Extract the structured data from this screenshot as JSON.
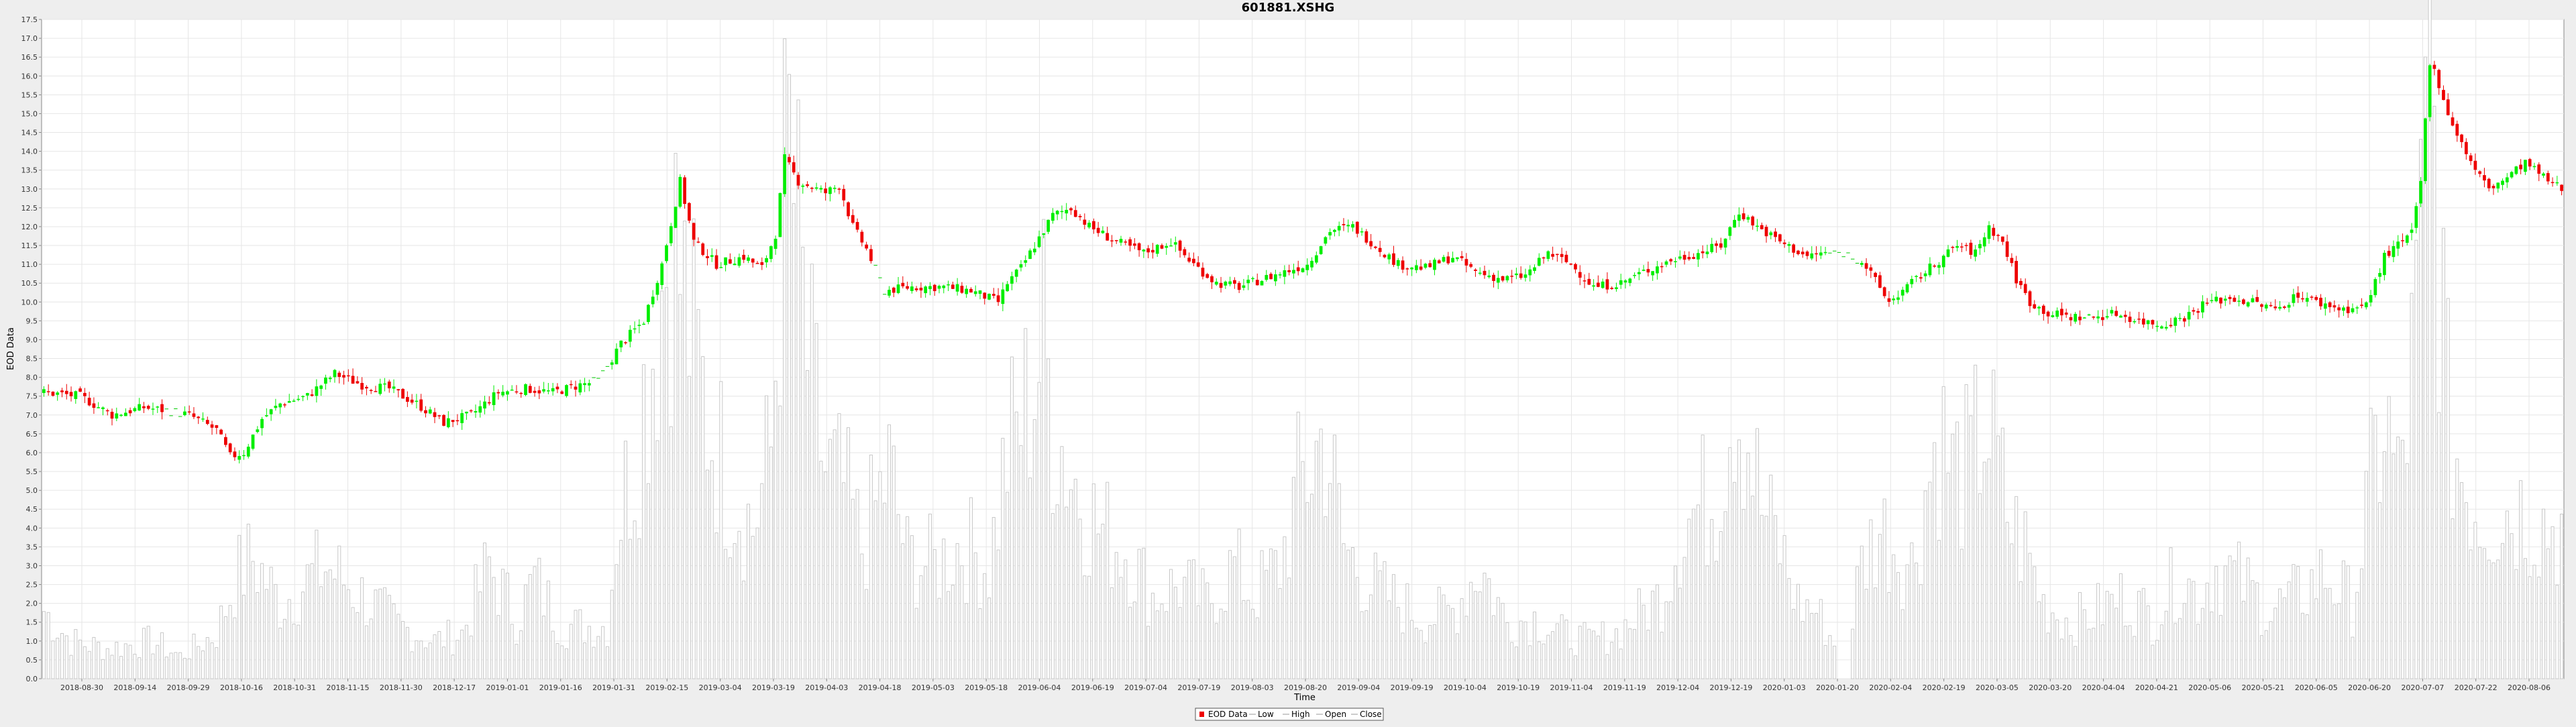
{
  "chart_data": {
    "type": "candlestick",
    "title": "601881.XSHG",
    "xlabel": "Time",
    "ylabel": "EOD Data",
    "ylim": [
      0.0,
      17.5
    ],
    "yticks": [
      0.0,
      0.5,
      1.0,
      1.5,
      2.0,
      2.5,
      3.0,
      3.5,
      4.0,
      4.5,
      5.0,
      5.5,
      6.0,
      6.5,
      7.0,
      7.5,
      8.0,
      8.5,
      9.0,
      9.5,
      10.0,
      10.5,
      11.0,
      11.5,
      12.0,
      12.5,
      13.0,
      13.5,
      14.0,
      14.5,
      15.0,
      15.5,
      16.0,
      16.5,
      17.0,
      17.5
    ],
    "x_tick_labels": [
      "2018-08-30",
      "2018-09-14",
      "2018-09-29",
      "2018-10-16",
      "2018-10-31",
      "2018-11-15",
      "2018-11-30",
      "2018-12-17",
      "2019-01-01",
      "2019-01-16",
      "2019-01-31",
      "2019-02-15",
      "2019-03-04",
      "2019-03-19",
      "2019-04-03",
      "2019-04-18",
      "2019-05-03",
      "2019-05-18",
      "2019-06-04",
      "2019-06-19",
      "2019-07-04",
      "2019-07-19",
      "2019-08-03",
      "2019-08-20",
      "2019-09-04",
      "2019-09-19",
      "2019-10-04",
      "2019-10-19",
      "2019-11-04",
      "2019-11-19",
      "2019-12-04",
      "2019-12-19",
      "2020-01-03",
      "2020-01-20",
      "2020-02-04",
      "2020-02-19",
      "2020-03-05",
      "2020-03-20",
      "2020-04-04",
      "2020-04-21",
      "2020-05-06",
      "2020-05-21",
      "2020-06-05",
      "2020-06-20",
      "2020-07-07",
      "2020-07-22",
      "2020-08-06"
    ],
    "legend": {
      "position": "bottom-center",
      "items": [
        "EOD Data",
        "Low",
        "High",
        "Open",
        "Close"
      ]
    },
    "grid": true,
    "colors": {
      "up": "#00ee00",
      "down": "#ee0000",
      "volume": "#c8c8c8",
      "gap": "#00cc00",
      "grid": "#e6e6e6"
    },
    "close_anchors": [
      [
        0,
        7.6
      ],
      [
        8,
        7.5
      ],
      [
        15,
        7.0
      ],
      [
        22,
        7.2
      ],
      [
        28,
        7.1
      ],
      [
        32,
        7.0
      ],
      [
        38,
        6.6
      ],
      [
        41,
        5.9
      ],
      [
        44,
        6.0
      ],
      [
        48,
        6.9
      ],
      [
        52,
        7.3
      ],
      [
        58,
        7.5
      ],
      [
        64,
        8.1
      ],
      [
        70,
        7.8
      ],
      [
        76,
        7.7
      ],
      [
        82,
        7.3
      ],
      [
        88,
        6.8
      ],
      [
        94,
        7.0
      ],
      [
        100,
        7.6
      ],
      [
        106,
        7.7
      ],
      [
        112,
        7.6
      ],
      [
        118,
        7.8
      ],
      [
        122,
        7.9
      ],
      [
        127,
        8.9
      ],
      [
        132,
        9.5
      ],
      [
        136,
        11.0
      ],
      [
        140,
        13.2
      ],
      [
        143,
        11.6
      ],
      [
        148,
        11.0
      ],
      [
        154,
        11.2
      ],
      [
        158,
        10.9
      ],
      [
        161,
        11.8
      ],
      [
        163,
        13.8
      ],
      [
        166,
        13.2
      ],
      [
        172,
        12.9
      ],
      [
        175,
        13.1
      ],
      [
        178,
        12.0
      ],
      [
        181,
        11.4
      ],
      [
        185,
        10.3
      ],
      [
        191,
        10.4
      ],
      [
        198,
        10.4
      ],
      [
        204,
        10.3
      ],
      [
        210,
        10.0
      ],
      [
        212,
        10.5
      ],
      [
        215,
        10.9
      ],
      [
        218,
        11.5
      ],
      [
        222,
        12.3
      ],
      [
        226,
        12.5
      ],
      [
        230,
        12.0
      ],
      [
        236,
        11.6
      ],
      [
        242,
        11.3
      ],
      [
        248,
        11.6
      ],
      [
        253,
        11.0
      ],
      [
        258,
        10.5
      ],
      [
        263,
        10.4
      ],
      [
        268,
        10.6
      ],
      [
        273,
        10.8
      ],
      [
        278,
        11.0
      ],
      [
        283,
        11.9
      ],
      [
        288,
        12.0
      ],
      [
        293,
        11.5
      ],
      [
        298,
        11.0
      ],
      [
        304,
        10.9
      ],
      [
        310,
        11.2
      ],
      [
        315,
        10.8
      ],
      [
        321,
        10.6
      ],
      [
        326,
        10.7
      ],
      [
        331,
        11.3
      ],
      [
        336,
        11.0
      ],
      [
        341,
        10.4
      ],
      [
        347,
        10.5
      ],
      [
        352,
        10.8
      ],
      [
        358,
        11.1
      ],
      [
        364,
        11.3
      ],
      [
        369,
        11.5
      ],
      [
        373,
        12.4
      ],
      [
        377,
        12.0
      ],
      [
        382,
        11.6
      ],
      [
        388,
        11.2
      ],
      [
        391,
        11.3
      ],
      [
        396,
        11.3
      ],
      [
        400,
        11.1
      ],
      [
        406,
        10.0
      ],
      [
        411,
        10.5
      ],
      [
        416,
        11.0
      ],
      [
        421,
        11.5
      ],
      [
        425,
        11.3
      ],
      [
        428,
        12.0
      ],
      [
        431,
        11.6
      ],
      [
        434,
        10.6
      ],
      [
        437,
        10.0
      ],
      [
        441,
        9.7
      ],
      [
        446,
        9.6
      ],
      [
        451,
        9.6
      ],
      [
        456,
        9.7
      ],
      [
        461,
        9.5
      ],
      [
        466,
        9.4
      ],
      [
        471,
        9.6
      ],
      [
        476,
        10.0
      ],
      [
        481,
        10.1
      ],
      [
        486,
        10.0
      ],
      [
        491,
        9.8
      ],
      [
        496,
        10.2
      ],
      [
        500,
        10.0
      ],
      [
        506,
        9.8
      ],
      [
        511,
        9.9
      ],
      [
        515,
        11.2
      ],
      [
        518,
        11.5
      ],
      [
        521,
        11.8
      ],
      [
        523,
        13.2
      ],
      [
        525,
        16.4
      ],
      [
        527,
        15.8
      ],
      [
        529,
        15.0
      ],
      [
        532,
        14.2
      ],
      [
        535,
        13.5
      ],
      [
        538,
        13.0
      ],
      [
        542,
        13.3
      ],
      [
        546,
        13.7
      ],
      [
        550,
        13.3
      ],
      [
        554,
        13.0
      ]
    ],
    "volume_anchors": [
      [
        0,
        1.8
      ],
      [
        6,
        1.0
      ],
      [
        14,
        0.8
      ],
      [
        24,
        1.0
      ],
      [
        30,
        0.6
      ],
      [
        38,
        1.2
      ],
      [
        42,
        2.6
      ],
      [
        46,
        3.2
      ],
      [
        52,
        2.0
      ],
      [
        58,
        2.6
      ],
      [
        62,
        3.0
      ],
      [
        70,
        2.2
      ],
      [
        78,
        1.4
      ],
      [
        86,
        1.0
      ],
      [
        92,
        1.2
      ],
      [
        98,
        3.0
      ],
      [
        104,
        1.6
      ],
      [
        108,
        2.6
      ],
      [
        114,
        1.4
      ],
      [
        120,
        1.4
      ],
      [
        124,
        1.4
      ],
      [
        126,
        4.0
      ],
      [
        130,
        6.0
      ],
      [
        134,
        9.0
      ],
      [
        138,
        12.0
      ],
      [
        141,
        10.0
      ],
      [
        146,
        7.0
      ],
      [
        150,
        5.5
      ],
      [
        156,
        4.0
      ],
      [
        160,
        6.0
      ],
      [
        162,
        11.0
      ],
      [
        164,
        14.0
      ],
      [
        168,
        8.5
      ],
      [
        172,
        5.5
      ],
      [
        176,
        5.0
      ],
      [
        180,
        3.5
      ],
      [
        186,
        5.5
      ],
      [
        190,
        3.2
      ],
      [
        196,
        3.0
      ],
      [
        202,
        3.6
      ],
      [
        208,
        3.0
      ],
      [
        212,
        6.0
      ],
      [
        214,
        6.5
      ],
      [
        217,
        7.5
      ],
      [
        220,
        9.0
      ],
      [
        222,
        7.0
      ],
      [
        226,
        5.5
      ],
      [
        232,
        4.0
      ],
      [
        238,
        3.5
      ],
      [
        244,
        2.2
      ],
      [
        250,
        2.5
      ],
      [
        256,
        2.0
      ],
      [
        262,
        3.0
      ],
      [
        266,
        2.2
      ],
      [
        272,
        3.0
      ],
      [
        276,
        5.0
      ],
      [
        282,
        6.5
      ],
      [
        286,
        3.5
      ],
      [
        292,
        2.5
      ],
      [
        298,
        2.0
      ],
      [
        304,
        1.6
      ],
      [
        310,
        1.8
      ],
      [
        316,
        3.0
      ],
      [
        322,
        1.5
      ],
      [
        328,
        1.6
      ],
      [
        334,
        1.2
      ],
      [
        340,
        1.0
      ],
      [
        346,
        1.2
      ],
      [
        352,
        1.8
      ],
      [
        356,
        2.2
      ],
      [
        360,
        4.0
      ],
      [
        364,
        4.5
      ],
      [
        368,
        5.0
      ],
      [
        372,
        8.0
      ],
      [
        375,
        6.5
      ],
      [
        378,
        4.5
      ],
      [
        382,
        3.5
      ],
      [
        386,
        2.0
      ],
      [
        390,
        1.8
      ],
      [
        396,
        0.5
      ],
      [
        400,
        3.0
      ],
      [
        404,
        4.0
      ],
      [
        408,
        3.5
      ],
      [
        411,
        3.0
      ],
      [
        414,
        5.0
      ],
      [
        417,
        6.5
      ],
      [
        420,
        5.5
      ],
      [
        424,
        5.5
      ],
      [
        427,
        7.0
      ],
      [
        430,
        5.5
      ],
      [
        433,
        4.0
      ],
      [
        436,
        3.5
      ],
      [
        440,
        2.0
      ],
      [
        446,
        1.5
      ],
      [
        452,
        1.8
      ],
      [
        458,
        2.2
      ],
      [
        464,
        1.6
      ],
      [
        470,
        2.8
      ],
      [
        474,
        2.2
      ],
      [
        478,
        3.0
      ],
      [
        484,
        2.5
      ],
      [
        490,
        1.8
      ],
      [
        496,
        2.2
      ],
      [
        502,
        2.8
      ],
      [
        508,
        2.0
      ],
      [
        512,
        5.0
      ],
      [
        515,
        7.0
      ],
      [
        518,
        5.0
      ],
      [
        521,
        8.0
      ],
      [
        523,
        11.0
      ],
      [
        525,
        16.0
      ],
      [
        527,
        12.0
      ],
      [
        529,
        7.0
      ],
      [
        532,
        5.5
      ],
      [
        536,
        4.5
      ],
      [
        540,
        4.5
      ],
      [
        546,
        4.5
      ],
      [
        552,
        4.0
      ],
      [
        554,
        4.0
      ]
    ]
  }
}
